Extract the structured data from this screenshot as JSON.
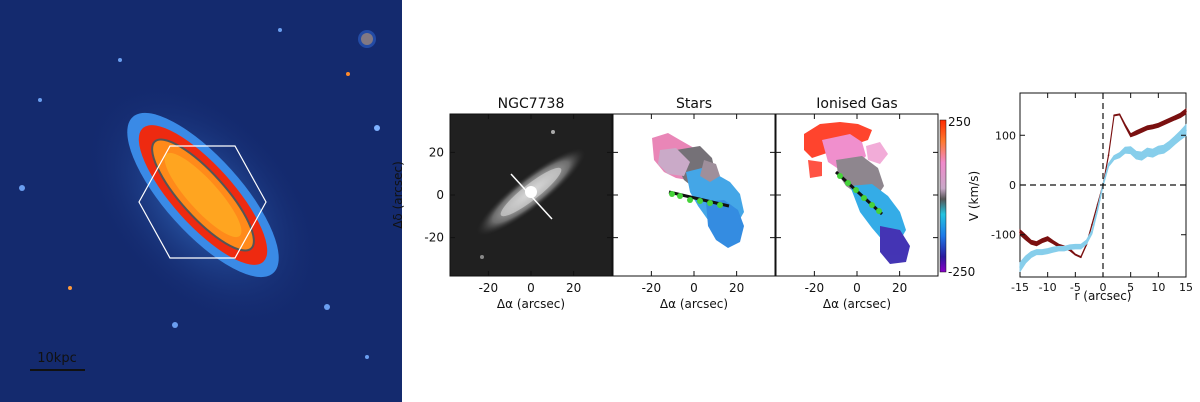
{
  "image_panel": {
    "scale_label": "10kpc"
  },
  "maps": {
    "panels": [
      {
        "title": "NGC7738"
      },
      {
        "title": "Stars"
      },
      {
        "title": "Ionised Gas"
      }
    ],
    "xlabel": "Δα (arcsec)",
    "ylabel": "Δδ (arcsec)",
    "x_ticks": [
      -20,
      0,
      20
    ],
    "y_ticks": [
      20,
      0,
      -20
    ],
    "xlim": [
      -38,
      38
    ],
    "ylim": [
      -38,
      38
    ],
    "colorbar": {
      "label": "V (km/s)",
      "max_label": "250",
      "min_label": "-250",
      "range": [
        -250,
        250
      ]
    }
  },
  "chart_data": {
    "type": "line",
    "xlabel": "r (arcsec)",
    "ylabel": "",
    "xlim": [
      -15,
      15
    ],
    "ylim": [
      -185,
      185
    ],
    "x_ticks": [
      -15,
      -10,
      -5,
      0,
      5,
      10,
      15
    ],
    "y_ticks": [
      -100,
      0,
      100
    ],
    "reference_lines": {
      "x": 0,
      "y": 0,
      "style": "dashed"
    },
    "series": [
      {
        "color": "#7a1010",
        "x": [
          -15,
          -14,
          -13,
          -12,
          -11,
          -10,
          -9,
          -8,
          -7,
          -6,
          -5,
          -4,
          -3,
          -2,
          -1,
          0,
          1,
          2,
          3,
          4,
          5,
          6,
          7,
          8,
          9,
          10,
          11,
          12,
          13,
          14,
          15
        ],
        "y": [
          -95,
          -105,
          -115,
          -118,
          -112,
          -108,
          -115,
          -122,
          -125,
          -130,
          -140,
          -145,
          -120,
          -80,
          -40,
          0,
          60,
          140,
          142,
          120,
          100,
          105,
          110,
          115,
          117,
          120,
          125,
          130,
          135,
          140,
          148
        ],
        "band_width": [
          10,
          10,
          8,
          8,
          8,
          8,
          6,
          6,
          5,
          4,
          2,
          2,
          2,
          2,
          2,
          2,
          2,
          2,
          2,
          4,
          6,
          8,
          8,
          8,
          8,
          8,
          8,
          8,
          8,
          9,
          10
        ]
      },
      {
        "color": "#87ceeb",
        "x": [
          -15,
          -14,
          -13,
          -12,
          -11,
          -10,
          -9,
          -8,
          -7,
          -6,
          -5,
          -4,
          -3,
          -2,
          -1,
          0,
          1,
          2,
          3,
          4,
          5,
          6,
          7,
          8,
          9,
          10,
          11,
          12,
          13,
          14,
          15
        ],
        "y": [
          -165,
          -150,
          -140,
          -135,
          -135,
          -133,
          -130,
          -128,
          -128,
          -125,
          -124,
          -124,
          -115,
          -95,
          -50,
          0,
          40,
          55,
          60,
          70,
          70,
          60,
          58,
          66,
          64,
          70,
          72,
          80,
          90,
          100,
          110
        ],
        "band_width": [
          18,
          14,
          12,
          10,
          10,
          10,
          10,
          9,
          9,
          9,
          9,
          9,
          8,
          7,
          6,
          5,
          6,
          8,
          10,
          12,
          14,
          15,
          16,
          16,
          16,
          16,
          16,
          16,
          16,
          18,
          22
        ]
      }
    ]
  }
}
